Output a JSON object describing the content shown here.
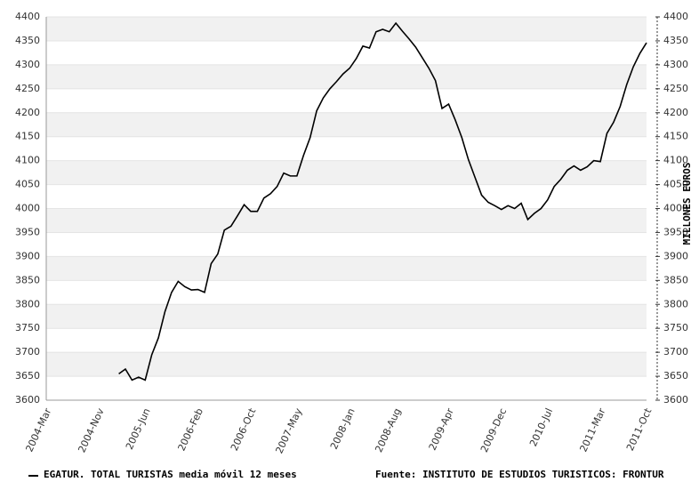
{
  "chart_data": {
    "type": "line",
    "categories": [
      "2004-Mar",
      null,
      null,
      null,
      null,
      null,
      null,
      null,
      "2004-Nov",
      null,
      null,
      null,
      null,
      null,
      null,
      "2005-Jun",
      null,
      null,
      null,
      null,
      null,
      null,
      null,
      "2006-Feb",
      null,
      null,
      null,
      null,
      null,
      null,
      null,
      "2006-Oct",
      null,
      null,
      null,
      null,
      null,
      null,
      "2007-May",
      null,
      null,
      null,
      null,
      null,
      null,
      null,
      "2008-Jan",
      null,
      null,
      null,
      null,
      null,
      null,
      "2008-Aug",
      null,
      null,
      null,
      null,
      null,
      null,
      null,
      "2009-Apr",
      null,
      null,
      null,
      null,
      null,
      null,
      null,
      "2009-Dec",
      null,
      null,
      null,
      null,
      null,
      null,
      "2010-Jul",
      null,
      null,
      null,
      null,
      null,
      null,
      null,
      "2011-Mar",
      null,
      null,
      null,
      null,
      null,
      null,
      "2011-Oct"
    ],
    "series": [
      {
        "name": "EGATUR. TOTAL TURISTAS media móvil 12 meses",
        "color": "#000000",
        "values": [
          null,
          null,
          null,
          null,
          null,
          null,
          null,
          null,
          null,
          null,
          null,
          3655,
          3665,
          3642,
          3648,
          3642,
          3695,
          3730,
          3785,
          3825,
          3848,
          3837,
          3830,
          3831,
          3825,
          3885,
          3905,
          3955,
          3963,
          3985,
          4008,
          3994,
          3994,
          4022,
          4031,
          4046,
          4074,
          4068,
          4068,
          4111,
          4148,
          4204,
          4231,
          4250,
          4265,
          4281,
          4293,
          4313,
          4339,
          4335,
          4369,
          4374,
          4369,
          4387,
          4370,
          4354,
          4337,
          4315,
          4293,
          4267,
          4209,
          4218,
          4185,
          4148,
          4102,
          4065,
          4028,
          4013,
          4006,
          3998,
          4006,
          4000,
          4011,
          3977,
          3990,
          4000,
          4018,
          4046,
          4061,
          4080,
          4089,
          4080,
          4087,
          4100,
          4098,
          4157,
          4180,
          4213,
          4259,
          4296,
          4324,
          4346
        ]
      }
    ],
    "source": "Fuente: INSTITUTO DE ESTUDIOS TURISTICOS: FRONTUR",
    "y2_label": "MILLONES EUROS",
    "ylim": [
      3600,
      4400
    ],
    "yticks": [
      3600,
      3650,
      3700,
      3750,
      3800,
      3850,
      3900,
      3950,
      4000,
      4050,
      4100,
      4150,
      4200,
      4250,
      4300,
      4350,
      4400
    ],
    "bands": true
  }
}
